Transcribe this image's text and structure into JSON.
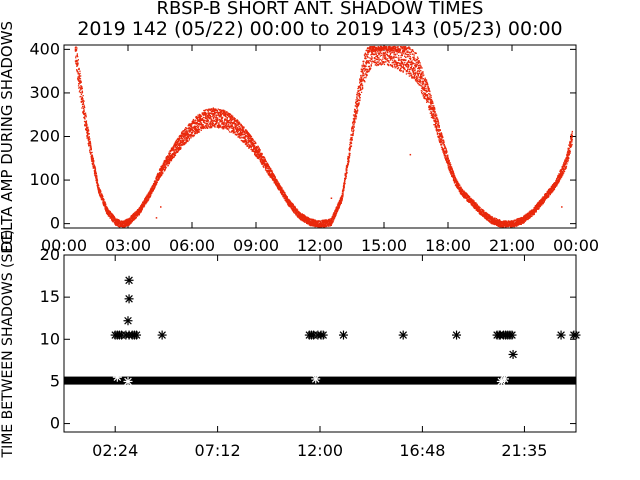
{
  "title_line1": "RBSP-B SHORT ANT. SHADOW TIMES",
  "title_line2": "2019 142 (05/22) 00:00 to 2019 143 (05/23) 00:00",
  "colors": {
    "red": "#e8280c",
    "black": "#000000",
    "axis": "#000000"
  },
  "chart_data": [
    {
      "type": "scatter",
      "ylabel": "DELTA AMP DURING SHADOWS",
      "x_unit": "hours",
      "xlim": [
        0,
        24
      ],
      "ylim": [
        -10,
        410
      ],
      "xtick_values": [
        0,
        3,
        6,
        9,
        12,
        15,
        18,
        21,
        24
      ],
      "xtick_labels": [
        "00:00",
        "03:00",
        "06:00",
        "09:00",
        "12:00",
        "15:00",
        "18:00",
        "21:00",
        "00:00"
      ],
      "ytick_values": [
        0,
        100,
        200,
        300,
        400
      ],
      "ytick_labels": [
        "0",
        "100",
        "200",
        "300",
        "400"
      ],
      "series_color": "#e8280c",
      "envelope": {
        "x": [
          0.5,
          0.7,
          1.0,
          1.3,
          1.6,
          2.0,
          2.4,
          2.7,
          3.0,
          3.5,
          4.0,
          4.5,
          5.0,
          5.5,
          6.0,
          6.5,
          7.0,
          7.5,
          8.0,
          8.5,
          9.0,
          9.5,
          10.0,
          10.5,
          11.0,
          11.5,
          12.0,
          12.5,
          13.0,
          13.3,
          13.6,
          14.0,
          14.4,
          14.8,
          15.2,
          15.6,
          16.0,
          16.5,
          17.0,
          17.5,
          18.0,
          18.3,
          18.6,
          19.0,
          19.5,
          20.0,
          20.5,
          21.0,
          21.5,
          22.0,
          22.5,
          23.0,
          23.5,
          23.8
        ],
        "y": [
          400,
          330,
          230,
          150,
          80,
          30,
          5,
          0,
          5,
          30,
          70,
          120,
          160,
          195,
          220,
          240,
          245,
          240,
          225,
          200,
          170,
          130,
          90,
          50,
          20,
          5,
          0,
          5,
          60,
          150,
          250,
          350,
          400,
          400,
          400,
          390,
          380,
          360,
          300,
          220,
          140,
          100,
          75,
          55,
          30,
          10,
          0,
          0,
          10,
          30,
          60,
          90,
          140,
          200
        ]
      }
    },
    {
      "type": "scatter",
      "ylabel": "TIME BETWEEN SHADOWS (SEC)",
      "x_unit": "hours",
      "xlim": [
        0,
        24
      ],
      "ylim": [
        -1,
        20
      ],
      "xtick_values": [
        2.4,
        7.2,
        12.0,
        16.8,
        21.5833
      ],
      "xtick_labels": [
        "02:24",
        "07:12",
        "12:00",
        "16:48",
        "21:35"
      ],
      "ytick_values": [
        0,
        5,
        10,
        15,
        20
      ],
      "ytick_labels": [
        "0",
        "5",
        "10",
        "15",
        "20"
      ],
      "series_color": "#000000",
      "baseline_value": 5.1,
      "points": {
        "x": [
          2.4,
          2.5,
          2.6,
          2.7,
          2.9,
          3.0,
          3.05,
          3.05,
          3.05,
          3.2,
          3.3,
          3.4,
          4.6,
          11.5,
          11.6,
          11.7,
          11.9,
          12.05,
          12.15,
          13.1,
          15.9,
          18.4,
          20.3,
          20.4,
          20.45,
          20.6,
          20.7,
          20.8,
          20.9,
          21.0,
          21.05,
          23.3,
          23.9,
          24.0,
          2.5,
          3.0,
          11.8,
          20.5,
          20.65
        ],
        "y": [
          10.5,
          10.5,
          10.5,
          10.5,
          10.5,
          12.2,
          14.8,
          17.0,
          10.5,
          10.5,
          10.5,
          10.5,
          10.5,
          10.5,
          10.5,
          10.5,
          10.5,
          10.5,
          10.5,
          10.5,
          10.5,
          10.5,
          10.5,
          10.5,
          10.5,
          10.5,
          10.5,
          10.5,
          10.5,
          10.5,
          8.2,
          10.5,
          10.5,
          10.5,
          5.5,
          5.0,
          5.3,
          5.0,
          5.3
        ]
      }
    }
  ]
}
